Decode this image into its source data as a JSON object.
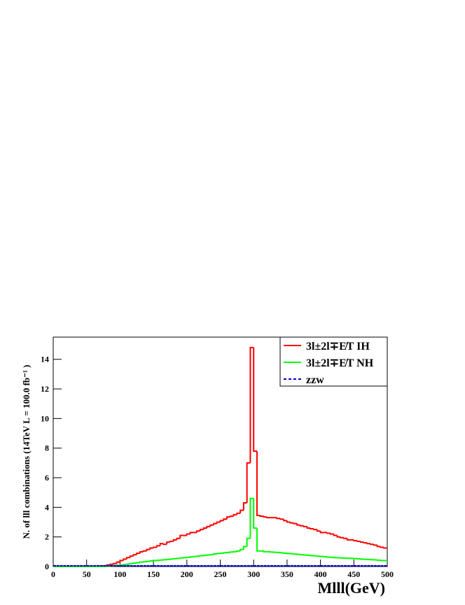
{
  "chart_data": {
    "type": "histogram",
    "y_label": "N. of lll combinations  (14TeV  L = 100.0 fb⁻¹ )",
    "x_label": "Mlll(GeV)",
    "bins": [
      0,
      5,
      10,
      15,
      20,
      25,
      30,
      35,
      40,
      45,
      50,
      55,
      60,
      65,
      70,
      75,
      80,
      85,
      90,
      95,
      100,
      105,
      110,
      115,
      120,
      125,
      130,
      135,
      140,
      145,
      150,
      155,
      160,
      165,
      170,
      175,
      180,
      185,
      190,
      195,
      200,
      205,
      210,
      215,
      220,
      225,
      230,
      235,
      240,
      245,
      250,
      255,
      260,
      265,
      270,
      275,
      280,
      285,
      290,
      295,
      300,
      305,
      310,
      315,
      320,
      325,
      330,
      335,
      340,
      345,
      350,
      355,
      360,
      365,
      370,
      375,
      380,
      385,
      390,
      395,
      400,
      405,
      410,
      415,
      420,
      425,
      430,
      435,
      440,
      445,
      450,
      455,
      460,
      465,
      470,
      475,
      480,
      485,
      490,
      495,
      500
    ],
    "series": [
      {
        "name": "3l±2l∓E̸T IH",
        "color": "#ff0000",
        "dash": false,
        "values": [
          0,
          0,
          0,
          0,
          0,
          0,
          0,
          0,
          0,
          0,
          0,
          0,
          0,
          0,
          0.02,
          0.05,
          0.1,
          0.15,
          0.2,
          0.3,
          0.4,
          0.5,
          0.6,
          0.7,
          0.8,
          0.9,
          1.0,
          1.05,
          1.15,
          1.25,
          1.3,
          1.4,
          1.55,
          1.5,
          1.65,
          1.7,
          1.8,
          1.9,
          2.1,
          2.1,
          2.2,
          2.3,
          2.3,
          2.4,
          2.5,
          2.6,
          2.7,
          2.8,
          2.9,
          3.0,
          3.1,
          3.2,
          3.35,
          3.4,
          3.5,
          3.6,
          3.8,
          4.3,
          7.0,
          14.8,
          7.8,
          3.45,
          3.4,
          3.35,
          3.3,
          3.3,
          3.3,
          3.25,
          3.2,
          3.1,
          3.0,
          2.95,
          2.9,
          2.8,
          2.75,
          2.7,
          2.6,
          2.55,
          2.5,
          2.4,
          2.3,
          2.3,
          2.25,
          2.2,
          2.1,
          2.0,
          1.95,
          1.9,
          1.8,
          1.8,
          1.75,
          1.7,
          1.65,
          1.6,
          1.55,
          1.5,
          1.45,
          1.35,
          1.3,
          1.25
        ]
      },
      {
        "name": "3l±2l∓E̸T NH",
        "color": "#00ff00",
        "dash": false,
        "values": [
          0,
          0,
          0,
          0,
          0,
          0,
          0,
          0,
          0,
          0,
          0,
          0,
          0,
          0,
          0,
          0,
          0.02,
          0.04,
          0.06,
          0.08,
          0.1,
          0.13,
          0.16,
          0.2,
          0.23,
          0.26,
          0.3,
          0.32,
          0.35,
          0.38,
          0.4,
          0.42,
          0.44,
          0.46,
          0.48,
          0.5,
          0.53,
          0.55,
          0.58,
          0.6,
          0.62,
          0.65,
          0.68,
          0.7,
          0.73,
          0.75,
          0.78,
          0.8,
          0.85,
          0.88,
          0.9,
          0.93,
          0.95,
          0.98,
          1.0,
          1.05,
          1.15,
          1.35,
          1.9,
          4.6,
          2.6,
          1.05,
          1.05,
          1.0,
          1.0,
          0.98,
          0.96,
          0.95,
          0.93,
          0.9,
          0.88,
          0.86,
          0.84,
          0.82,
          0.8,
          0.78,
          0.76,
          0.74,
          0.72,
          0.7,
          0.68,
          0.66,
          0.64,
          0.62,
          0.6,
          0.59,
          0.58,
          0.57,
          0.56,
          0.55,
          0.54,
          0.52,
          0.5,
          0.49,
          0.48,
          0.46,
          0.45,
          0.43,
          0.41,
          0.4
        ]
      },
      {
        "name": "zzw",
        "color": "#0000cc",
        "dash": true,
        "values": [
          0.05,
          0.05,
          0.05,
          0.05,
          0.05,
          0.05,
          0.05,
          0.05,
          0.05,
          0.05,
          0.05,
          0.05,
          0.05,
          0.05,
          0.05,
          0.05,
          0.05,
          0.05,
          0.05,
          0.05,
          0.05,
          0.05,
          0.05,
          0.05,
          0.05,
          0.05,
          0.05,
          0.05,
          0.05,
          0.05,
          0.05,
          0.05,
          0.05,
          0.05,
          0.05,
          0.05,
          0.05,
          0.05,
          0.05,
          0.05,
          0.05,
          0.05,
          0.05,
          0.05,
          0.05,
          0.05,
          0.05,
          0.05,
          0.05,
          0.05,
          0.05,
          0.05,
          0.05,
          0.05,
          0.05,
          0.05,
          0.05,
          0.05,
          0.05,
          0.05,
          0.05,
          0.05,
          0.05,
          0.05,
          0.05,
          0.05,
          0.05,
          0.05,
          0.05,
          0.05,
          0.05,
          0.05,
          0.05,
          0.05,
          0.05,
          0.05,
          0.05,
          0.05,
          0.05,
          0.05,
          0.05,
          0.05,
          0.05,
          0.05,
          0.05,
          0.05,
          0.05,
          0.05,
          0.05,
          0.05,
          0.05,
          0.05,
          0.05,
          0.05,
          0.05,
          0.05,
          0.05,
          0.05,
          0.05,
          0.05
        ]
      }
    ],
    "xlim": [
      0,
      500
    ],
    "ylim": [
      0,
      15.5
    ],
    "xticks": [
      0,
      50,
      100,
      150,
      200,
      250,
      300,
      350,
      400,
      450,
      500
    ],
    "yticks": [
      0,
      2,
      4,
      6,
      8,
      10,
      12,
      14
    ],
    "legend": "top-right"
  }
}
